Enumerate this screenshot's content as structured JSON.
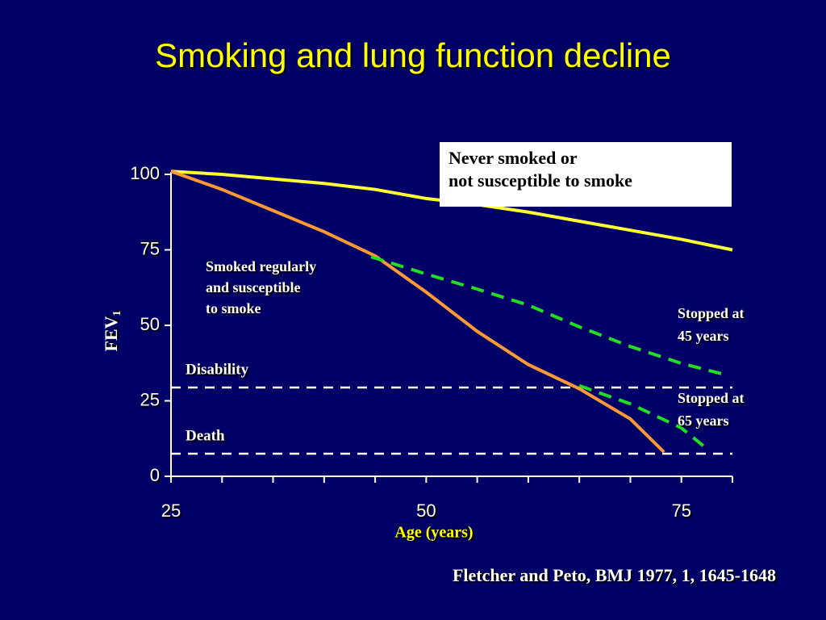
{
  "chart_data": {
    "type": "line",
    "title": "Smoking and lung function decline",
    "xlabel": "Age (years)",
    "ylabel": {
      "text": "FEV",
      "subscript": "1"
    },
    "xlim": [
      25,
      80
    ],
    "xticks": [
      25,
      50,
      75
    ],
    "xminorticks": [
      30,
      35,
      40,
      45,
      55,
      60,
      65,
      70,
      80
    ],
    "ylim": [
      0,
      100
    ],
    "yticks": [
      0,
      25,
      50,
      75,
      100
    ],
    "series": [
      {
        "name": [
          "Never smoked or",
          "not susceptible to smoke"
        ],
        "color": "#ffff33",
        "dashed": false,
        "x": [
          25,
          30,
          35,
          40,
          45,
          50,
          55,
          60,
          65,
          70,
          75,
          80
        ],
        "values": [
          101,
          100,
          98.5,
          97,
          95,
          92,
          90,
          87.5,
          84.5,
          81.5,
          78.5,
          75
        ]
      },
      {
        "name": [
          "Smoked regularly",
          "and susceptible",
          "to smoke"
        ],
        "color": "#ff9933",
        "dashed": false,
        "x": [
          25,
          30,
          35,
          40,
          45,
          50,
          55,
          60,
          65,
          70,
          73.3
        ],
        "values": [
          101,
          95,
          88,
          81,
          73,
          61,
          48,
          37,
          29,
          19,
          8
        ]
      },
      {
        "name": [
          "Stopped at",
          "45 years"
        ],
        "color": "#22dd22",
        "dashed": true,
        "x": [
          44.6,
          50,
          55,
          60,
          65,
          70,
          75,
          79.6
        ],
        "values": [
          72.7,
          67,
          62,
          56.7,
          49.5,
          43,
          37.4,
          33.4
        ]
      },
      {
        "name": [
          "Stopped at",
          "65 years"
        ],
        "color": "#22dd22",
        "dashed": true,
        "x": [
          65,
          70,
          75,
          77.4
        ],
        "values": [
          30,
          24,
          16,
          9.4
        ]
      }
    ],
    "hlines": [
      {
        "label": "Disability",
        "value": 29.4
      },
      {
        "label": "Death",
        "value": 7.5
      }
    ],
    "source": "Fletcher and Peto, BMJ 1977, 1, 1645-1648"
  }
}
